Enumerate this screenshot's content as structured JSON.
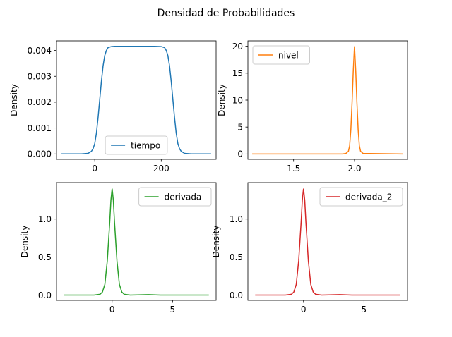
{
  "figure": {
    "title": "Densidad de Probabilidades"
  },
  "chart_data": [
    {
      "type": "line",
      "ylabel": "Density",
      "xlim": [
        -115,
        365
      ],
      "ylim": [
        -0.00021,
        0.00437
      ],
      "xticks": [
        0,
        200
      ],
      "xtick_labels": [
        "0",
        "200"
      ],
      "yticks": [
        0,
        0.001,
        0.002,
        0.003,
        0.004
      ],
      "ytick_labels": [
        "0.000",
        "0.001",
        "0.002",
        "0.003",
        "0.004"
      ],
      "legend_loc": "lower-center",
      "series": [
        {
          "name": "tiempo",
          "color": "#1f77b4",
          "x": [
            -100,
            -40,
            -20,
            -10,
            -5,
            0,
            5,
            10,
            15,
            20,
            25,
            30,
            35,
            40,
            50,
            60,
            80,
            100,
            140,
            180,
            200,
            210,
            215,
            220,
            225,
            230,
            235,
            240,
            245,
            250,
            255,
            260,
            270,
            290,
            350
          ],
          "y": [
            0,
            0,
            2e-05,
            0.0001,
            0.0002,
            0.0004,
            0.0008,
            0.0014,
            0.0021,
            0.0028,
            0.0034,
            0.0038,
            0.004,
            0.00411,
            0.00415,
            0.00416,
            0.00416,
            0.00416,
            0.00416,
            0.00416,
            0.00415,
            0.00411,
            0.004,
            0.0038,
            0.0034,
            0.0028,
            0.0021,
            0.0014,
            0.0008,
            0.0004,
            0.0002,
            0.0001,
            2e-05,
            0,
            0
          ]
        }
      ]
    },
    {
      "type": "line",
      "ylabel": "Density",
      "xlim": [
        1.125,
        2.435
      ],
      "ylim": [
        -1.0,
        21.0
      ],
      "xticks": [
        1.5,
        2.0
      ],
      "xtick_labels": [
        "1.5",
        "2.0"
      ],
      "yticks": [
        0,
        5,
        10,
        15,
        20
      ],
      "ytick_labels": [
        "0",
        "5",
        "10",
        "15",
        "20"
      ],
      "legend_loc": "upper-left",
      "series": [
        {
          "name": "nivel",
          "color": "#ff7f0e",
          "x": [
            1.16,
            1.9,
            1.93,
            1.95,
            1.96,
            1.97,
            1.98,
            1.99,
            2.0,
            2.01,
            2.02,
            2.03,
            2.04,
            2.05,
            2.07,
            2.4
          ],
          "y": [
            0,
            0,
            0.1,
            0.5,
            1.5,
            4.5,
            9.5,
            15.5,
            20.0,
            15.5,
            9.5,
            4.5,
            1.5,
            0.5,
            0.1,
            0
          ]
        }
      ]
    },
    {
      "type": "line",
      "ylabel": "Density",
      "xlim": [
        -4.6,
        8.6
      ],
      "ylim": [
        -0.07,
        1.48
      ],
      "xticks": [
        0,
        5
      ],
      "xtick_labels": [
        "0",
        "5"
      ],
      "yticks": [
        0,
        0.5,
        1.0
      ],
      "ytick_labels": [
        "0.0",
        "0.5",
        "1.0"
      ],
      "legend_loc": "upper-right",
      "series": [
        {
          "name": "derivada",
          "color": "#2ca02c",
          "x": [
            -4,
            -1.5,
            -1.0,
            -0.8,
            -0.6,
            -0.4,
            -0.2,
            -0.1,
            0,
            0.1,
            0.2,
            0.4,
            0.6,
            0.8,
            1.0,
            1.5,
            3.0,
            4.0,
            8.0
          ],
          "y": [
            0,
            0,
            0.01,
            0.04,
            0.14,
            0.45,
            0.95,
            1.25,
            1.4,
            1.25,
            0.95,
            0.45,
            0.14,
            0.04,
            0.01,
            0,
            0.005,
            0,
            0
          ]
        }
      ]
    },
    {
      "type": "line",
      "ylabel": "Density",
      "xlim": [
        -4.6,
        8.6
      ],
      "ylim": [
        -0.07,
        1.48
      ],
      "xticks": [
        0,
        5
      ],
      "xtick_labels": [
        "0",
        "5"
      ],
      "yticks": [
        0,
        0.5,
        1.0
      ],
      "ytick_labels": [
        "0.0",
        "0.5",
        "1.0"
      ],
      "legend_loc": "upper-right",
      "series": [
        {
          "name": "derivada_2",
          "color": "#d62728",
          "x": [
            -4,
            -1.5,
            -1.0,
            -0.8,
            -0.6,
            -0.4,
            -0.2,
            -0.1,
            0,
            0.1,
            0.2,
            0.4,
            0.6,
            0.8,
            1.0,
            1.5,
            3.0,
            4.0,
            8.0
          ],
          "y": [
            0,
            0,
            0.01,
            0.04,
            0.14,
            0.45,
            0.95,
            1.25,
            1.4,
            1.25,
            0.95,
            0.45,
            0.14,
            0.04,
            0.01,
            0,
            0.005,
            0,
            0
          ]
        }
      ]
    }
  ]
}
